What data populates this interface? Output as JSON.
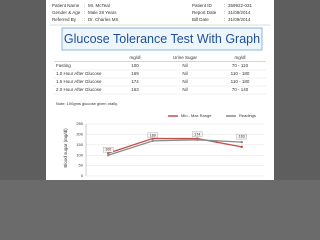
{
  "header": {
    "rows": [
      [
        {
          "label": "Patient Name",
          "value": "Mr. McTeal"
        },
        {
          "label": "Patient ID",
          "value": "359922-031"
        }
      ],
      [
        {
          "label": "Gender & Age",
          "value": "Male   28 Years"
        },
        {
          "label": "Report Date",
          "value": "31/09/2014"
        }
      ],
      [
        {
          "label": "Referred By",
          "value": "Dr. Charles MS"
        },
        {
          "label": "Bill Date",
          "value": "31/09/2014"
        }
      ]
    ]
  },
  "title": "Glucose Tolerance Test With Graph",
  "table": {
    "columns": [
      "",
      "mg/dl",
      "Urine Sugar",
      "mg/dl"
    ],
    "rows": [
      [
        "Fasting",
        "100",
        "Nil",
        "70 - 110"
      ],
      [
        "1.0 Hour After Glucose",
        "169",
        "Nil",
        "110 - 180"
      ],
      [
        "1.5 Hour After Glucose",
        "174",
        "Nil",
        "110 - 180"
      ],
      [
        "2.0 Hour After Glucose",
        "163",
        "Nil",
        "70 - 140"
      ]
    ]
  },
  "note": "Note: 100gms glucose given orally.",
  "chart_data": {
    "type": "line",
    "y_label": "Blood sugar (mg/dl)",
    "categories": [
      null,
      null,
      null,
      null
    ],
    "series": [
      {
        "name": "Min - Max Range",
        "color": "#c0504d",
        "values": [
          110,
          180,
          180,
          140
        ]
      },
      {
        "name": "Readings",
        "color": "#8c8c8c",
        "values": [
          100,
          169,
          174,
          163
        ]
      }
    ],
    "ylim": [
      0,
      250
    ],
    "yticks": [
      0,
      50,
      100,
      150,
      200,
      250
    ],
    "grid": true
  }
}
